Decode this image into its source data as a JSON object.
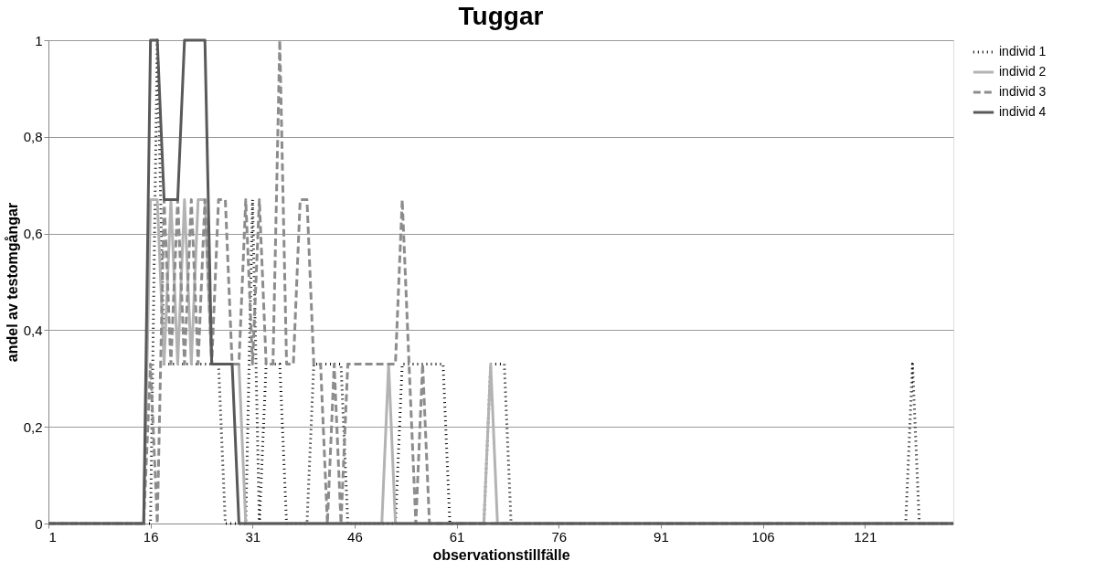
{
  "chart_data": {
    "type": "line",
    "title": "Tuggar",
    "xlabel": "observationstillfälle",
    "ylabel": "andel av testomgångar",
    "x": [
      1,
      2,
      3,
      4,
      5,
      6,
      7,
      8,
      9,
      10,
      11,
      12,
      13,
      14,
      15,
      16,
      17,
      18,
      19,
      20,
      21,
      22,
      23,
      24,
      25,
      26,
      27,
      28,
      29,
      30,
      31,
      32,
      33,
      34,
      35,
      36,
      37,
      38,
      39,
      40,
      41,
      42,
      43,
      44,
      45,
      46,
      47,
      48,
      49,
      50,
      51,
      52,
      53,
      54,
      55,
      56,
      57,
      58,
      59,
      60,
      61,
      62,
      63,
      64,
      65,
      66,
      67,
      68,
      69,
      70,
      71,
      72,
      73,
      74,
      75,
      76,
      77,
      78,
      79,
      80,
      81,
      82,
      83,
      84,
      85,
      86,
      87,
      88,
      89,
      90,
      91,
      92,
      93,
      94,
      95,
      96,
      97,
      98,
      99,
      100,
      101,
      102,
      103,
      104,
      105,
      106,
      107,
      108,
      109,
      110,
      111,
      112,
      113,
      114,
      115,
      116,
      117,
      118,
      119,
      120,
      121,
      122,
      123,
      124,
      125,
      126,
      127,
      128,
      129,
      130,
      131,
      132,
      133,
      134
    ],
    "series": [
      {
        "name": "individ 1",
        "color": "#000000",
        "line_style": "dotted",
        "values": [
          0,
          0,
          0,
          0,
          0,
          0,
          0,
          0,
          0,
          0,
          0,
          0,
          0,
          0,
          0,
          0,
          1,
          0.33,
          0.33,
          0.33,
          0.33,
          0.33,
          0.33,
          0.33,
          0.33,
          0.33,
          0,
          0,
          0,
          0,
          0.67,
          0,
          0.33,
          0.33,
          0.33,
          0,
          0,
          0,
          0,
          0.33,
          0.33,
          0.33,
          0.33,
          0.33,
          0,
          0,
          0,
          0,
          0,
          0,
          0,
          0,
          0.33,
          0.33,
          0.33,
          0.33,
          0.33,
          0.33,
          0.33,
          0,
          0,
          0,
          0,
          0,
          0,
          0.33,
          0.33,
          0.33,
          0,
          0,
          0,
          0,
          0,
          0,
          0,
          0,
          0,
          0,
          0,
          0,
          0,
          0,
          0,
          0,
          0,
          0,
          0,
          0,
          0,
          0,
          0,
          0,
          0,
          0,
          0,
          0,
          0,
          0,
          0,
          0,
          0,
          0,
          0,
          0,
          0,
          0,
          0,
          0,
          0,
          0,
          0,
          0,
          0,
          0,
          0,
          0,
          0,
          0,
          0,
          0,
          0,
          0,
          0,
          0,
          0,
          0,
          0,
          0.33,
          0,
          0,
          0,
          0,
          0,
          0
        ]
      },
      {
        "name": "individ 2",
        "color": "#b3b3b3",
        "line_style": "solid",
        "values": [
          0,
          0,
          0,
          0,
          0,
          0,
          0,
          0,
          0,
          0,
          0,
          0,
          0,
          0,
          0,
          0.67,
          0.67,
          0.33,
          0.67,
          0.33,
          0.67,
          0.33,
          0.67,
          0.67,
          0.33,
          0.33,
          0.33,
          0.33,
          0.33,
          0,
          0,
          0,
          0,
          0,
          0,
          0,
          0,
          0,
          0,
          0,
          0,
          0,
          0,
          0,
          0,
          0,
          0,
          0,
          0,
          0,
          0.33,
          0,
          0,
          0,
          0,
          0,
          0,
          0,
          0,
          0,
          0,
          0,
          0,
          0,
          0,
          0.33,
          0,
          0,
          0,
          0,
          0,
          0,
          0,
          0,
          0,
          0,
          0,
          0,
          0,
          0,
          0,
          0,
          0,
          0,
          0,
          0,
          0,
          0,
          0,
          0,
          0,
          0,
          0,
          0,
          0,
          0,
          0,
          0,
          0,
          0,
          0,
          0,
          0,
          0,
          0,
          0,
          0,
          0,
          0,
          0,
          0,
          0,
          0,
          0,
          0,
          0,
          0,
          0,
          0,
          0,
          0,
          0,
          0,
          0,
          0,
          0,
          0,
          0,
          0,
          0,
          0,
          0,
          0,
          0
        ]
      },
      {
        "name": "individ 3",
        "color": "#8c8c8c",
        "line_style": "dashed",
        "values": [
          0,
          0,
          0,
          0,
          0,
          0,
          0,
          0,
          0,
          0,
          0,
          0,
          0,
          0,
          0,
          0.33,
          0,
          0.67,
          0.33,
          0.67,
          0.33,
          0.67,
          0.33,
          0.67,
          0.33,
          0.67,
          0.67,
          0.33,
          0.33,
          0.67,
          0.33,
          0.67,
          0.33,
          0.33,
          1,
          0.33,
          0.33,
          0.67,
          0.67,
          0.33,
          0.33,
          0,
          0.33,
          0,
          0.33,
          0.33,
          0.33,
          0.33,
          0.33,
          0.33,
          0.33,
          0.33,
          0.67,
          0.33,
          0,
          0.33,
          0,
          0,
          0,
          0,
          0,
          0,
          0,
          0,
          0,
          0,
          0,
          0,
          0,
          0,
          0,
          0,
          0,
          0,
          0,
          0,
          0,
          0,
          0,
          0,
          0,
          0,
          0,
          0,
          0,
          0,
          0,
          0,
          0,
          0,
          0,
          0,
          0,
          0,
          0,
          0,
          0,
          0,
          0,
          0,
          0,
          0,
          0,
          0,
          0,
          0,
          0,
          0,
          0,
          0,
          0,
          0,
          0,
          0,
          0,
          0,
          0,
          0,
          0,
          0,
          0,
          0,
          0,
          0,
          0,
          0,
          0,
          0,
          0,
          0,
          0,
          0,
          0,
          0
        ]
      },
      {
        "name": "individ 4",
        "color": "#595959",
        "line_style": "solid",
        "values": [
          0,
          0,
          0,
          0,
          0,
          0,
          0,
          0,
          0,
          0,
          0,
          0,
          0,
          0,
          0,
          1,
          1,
          0.67,
          0.67,
          0.67,
          1,
          1,
          1,
          1,
          0.33,
          0.33,
          0.33,
          0.33,
          0,
          0,
          0,
          0,
          0,
          0,
          0,
          0,
          0,
          0,
          0,
          0,
          0,
          0,
          0,
          0,
          0,
          0,
          0,
          0,
          0,
          0,
          0,
          0,
          0,
          0,
          0,
          0,
          0,
          0,
          0,
          0,
          0,
          0,
          0,
          0,
          0,
          0,
          0,
          0,
          0,
          0,
          0,
          0,
          0,
          0,
          0,
          0,
          0,
          0,
          0,
          0,
          0,
          0,
          0,
          0,
          0,
          0,
          0,
          0,
          0,
          0,
          0,
          0,
          0,
          0,
          0,
          0,
          0,
          0,
          0,
          0,
          0,
          0,
          0,
          0,
          0,
          0,
          0,
          0,
          0,
          0,
          0,
          0,
          0,
          0,
          0,
          0,
          0,
          0,
          0,
          0,
          0,
          0,
          0,
          0,
          0,
          0,
          0,
          0,
          0,
          0,
          0,
          0,
          0,
          0
        ]
      }
    ],
    "xlim": [
      1,
      134
    ],
    "xticks": [
      1,
      16,
      31,
      46,
      61,
      76,
      91,
      106,
      121
    ],
    "ylim": [
      0,
      1
    ],
    "yticks": [
      0,
      {
        "value": 0.2,
        "label": "0,2"
      },
      {
        "value": 0.4,
        "label": "0,4"
      },
      {
        "value": 0.6,
        "label": "0,6"
      },
      {
        "value": 0.8,
        "label": "0,8"
      },
      1
    ],
    "grid": "y",
    "legend": "right",
    "marker": "none"
  }
}
